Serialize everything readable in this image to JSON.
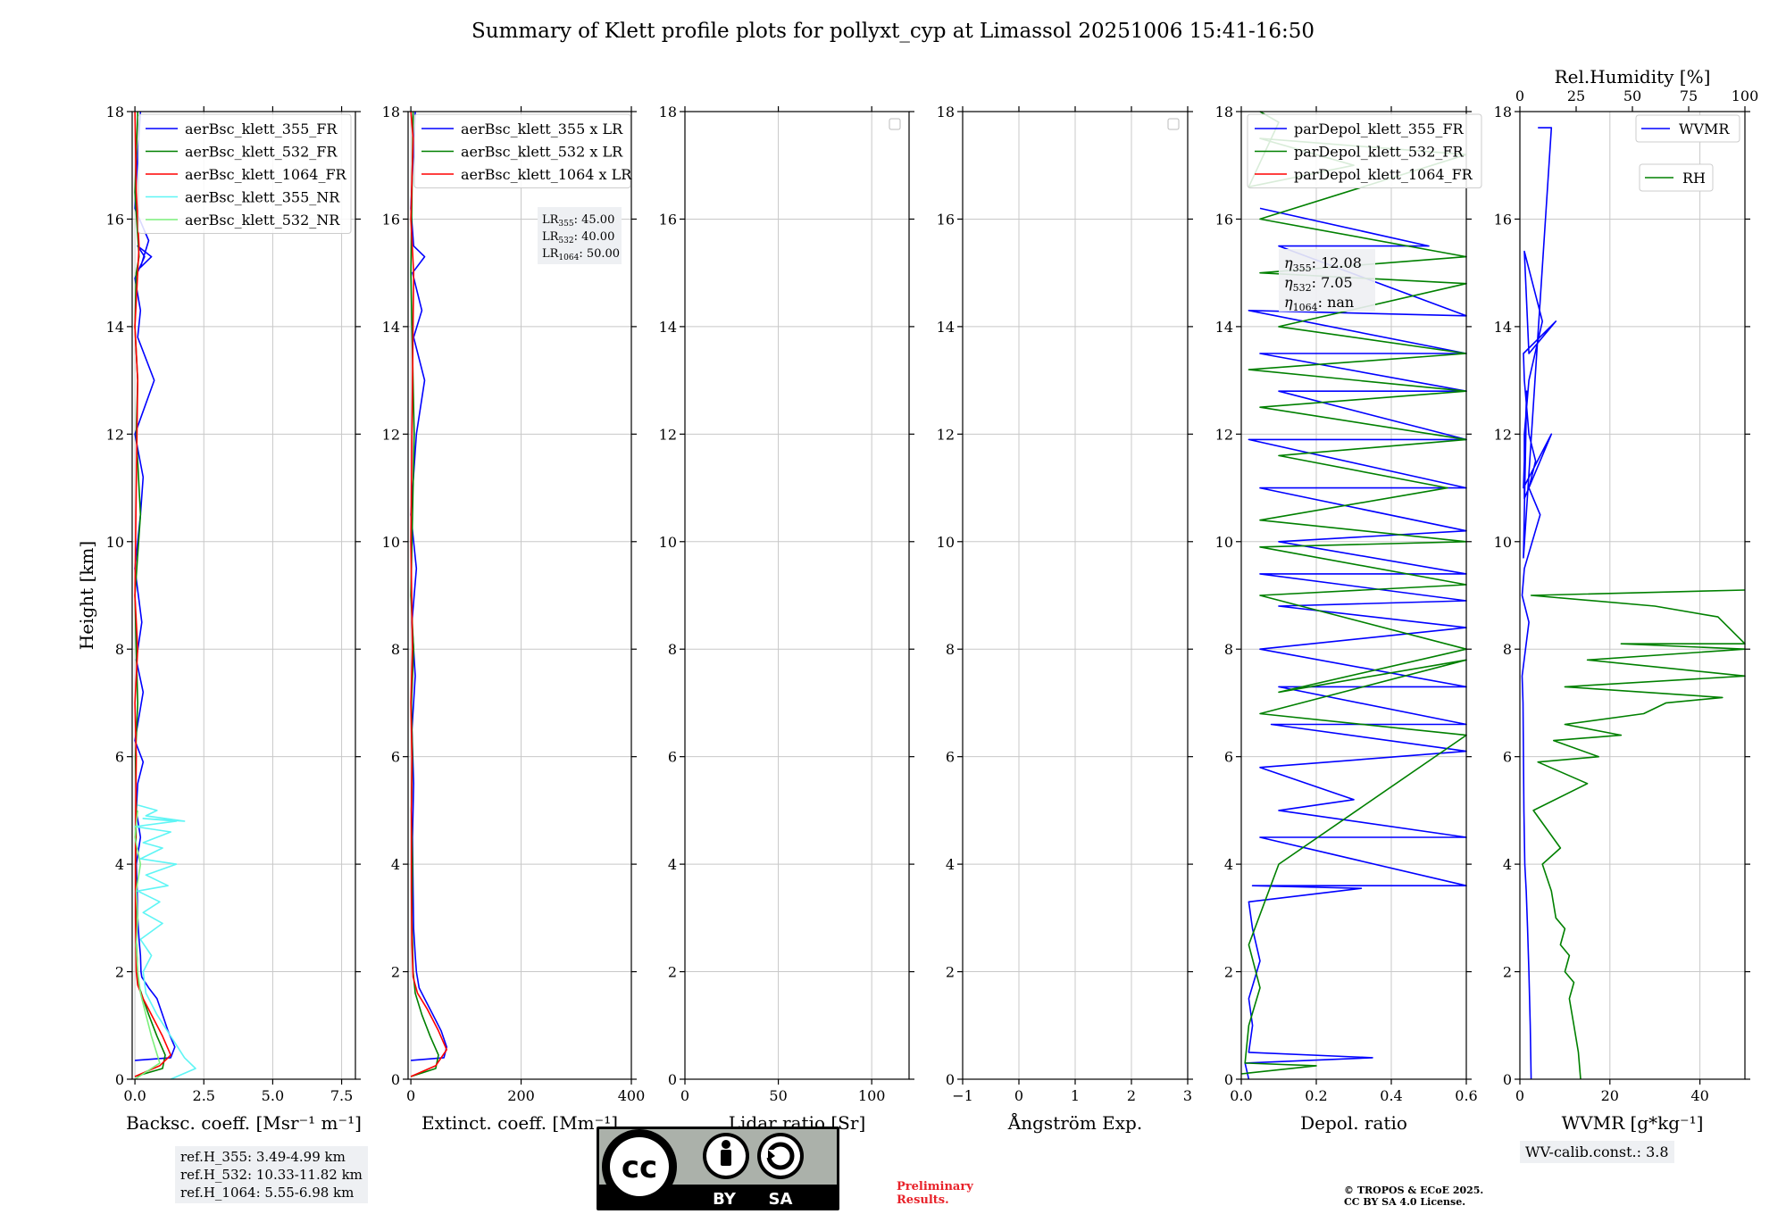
{
  "title": "Summary of Klett profile plots for pollyxt_cyp at Limassol 20251006 15:41-16:50",
  "ylabel": "Height [km]",
  "colors": {
    "b355": "#0000ff",
    "b532": "#008000",
    "b1064": "#ff0000",
    "nr355": "#5ff5f5",
    "nr532": "#7cf07c",
    "grid": "#c8c8c8",
    "frame": "#000000",
    "boxbg": "#eef0f3",
    "preliminary": "#e8222a"
  },
  "ref_heights": [
    "ref.H_355: 3.49-4.99 km",
    "ref.H_532: 10.33-11.82 km",
    "ref.H_1064: 5.55-6.98 km"
  ],
  "lr_text": [
    {
      "sub": "355",
      "val": ": 45.00"
    },
    {
      "sub": "532",
      "val": ": 40.00"
    },
    {
      "sub": "1064",
      "val": ": 50.00"
    }
  ],
  "eta_text": [
    {
      "sub": "355",
      "val": ": 12.08"
    },
    {
      "sub": "532",
      "val": ": 7.05"
    },
    {
      "sub": "1064",
      "val": ": nan"
    }
  ],
  "wv_calib": "WV-calib.const.: 3.8",
  "license": {
    "by": "BY",
    "sa": "SA",
    "cc": "cc"
  },
  "preliminary": [
    "Preliminary",
    "Results."
  ],
  "copyright": [
    "© TROPOS & ECoE 2025.",
    "CC BY SA 4.0 License."
  ],
  "chart_data": [
    {
      "type": "line",
      "id": "bsc",
      "xlabel": "Backsc. coeff. [Msr⁻¹ m⁻¹]",
      "xlim": [
        -0.1,
        8.0
      ],
      "ylim": [
        0,
        18
      ],
      "xticks": [
        0,
        2.5,
        5,
        7.5
      ],
      "xticklabels": [
        "0.0",
        "2.5",
        "5.0",
        "7.5"
      ],
      "yticks": [
        0,
        2,
        4,
        6,
        8,
        10,
        12,
        14,
        16,
        18
      ],
      "legend": "top-left",
      "series": [
        {
          "name": "aerBsc_klett_355_FR",
          "color": "b355",
          "x": [
            0.0,
            1.3,
            1.45,
            1.2,
            1.0,
            0.8,
            0.5,
            0.25,
            0.22,
            0.2,
            0.15,
            0.1,
            0.08,
            0.05,
            0.2,
            0.05,
            0.1,
            0.3,
            0.0,
            0.3,
            0.05,
            0.25,
            0.0,
            0.2,
            0.3,
            0.0,
            0.7,
            0.1,
            0.2,
            0.0,
            0.35,
            0.1,
            0.6,
            0.2,
            0.5,
            0.0,
            0.1,
            0.2
          ],
          "y": [
            0.35,
            0.4,
            0.6,
            0.9,
            1.2,
            1.5,
            1.7,
            1.9,
            2.0,
            2.3,
            2.6,
            3.0,
            3.5,
            4.0,
            4.5,
            5.0,
            5.5,
            5.9,
            6.3,
            7.2,
            7.8,
            8.5,
            9.5,
            10.5,
            11.2,
            12.0,
            13.0,
            13.8,
            14.3,
            14.9,
            15.3,
            15.5,
            15.3,
            15.1,
            15.6,
            16.2,
            17.2,
            18.0
          ]
        },
        {
          "name": "aerBsc_klett_532_FR",
          "color": "b532",
          "x": [
            0.0,
            1.0,
            1.1,
            0.8,
            0.5,
            0.3,
            0.1,
            0.08,
            0.05,
            0.04,
            0.03,
            0.05,
            0.02,
            0.1,
            0.05,
            0.0,
            0.2,
            0.05,
            0.1,
            0.0,
            0.05,
            0.15,
            0.0,
            0.1
          ],
          "y": [
            0.05,
            0.2,
            0.45,
            0.8,
            1.2,
            1.5,
            1.8,
            2.2,
            2.6,
            3.0,
            4.0,
            5.0,
            6.0,
            7.0,
            8.0,
            9.0,
            10.5,
            12.0,
            13.0,
            14.0,
            15.0,
            15.3,
            16.5,
            18.0
          ]
        },
        {
          "name": "aerBsc_klett_1064_FR",
          "color": "b1064",
          "x": [
            0.0,
            0.9,
            1.3,
            1.0,
            0.6,
            0.3,
            0.1,
            0.05,
            0.02,
            0.02,
            0.03,
            0.05,
            0.0,
            0.1,
            0.0,
            0.05,
            0.1,
            0.0,
            0.1,
            0.15,
            0.05,
            0.0
          ],
          "y": [
            0.05,
            0.25,
            0.45,
            0.8,
            1.2,
            1.5,
            1.75,
            2.0,
            3.0,
            4.0,
            5.0,
            6.0,
            7.0,
            8.0,
            9.0,
            11.0,
            13.0,
            14.0,
            15.0,
            15.5,
            16.5,
            18.0
          ]
        },
        {
          "name": "aerBsc_klett_355_NR",
          "color": "nr355",
          "x": [
            1.3,
            2.2,
            1.8,
            1.3,
            0.8,
            0.4,
            0.3,
            0.6,
            0.2,
            1.0,
            0.3,
            0.9,
            0.1,
            1.2,
            0.4,
            1.5,
            0.2,
            1.0,
            0.3,
            1.3,
            0.0,
            1.5,
            0.3,
            1.8,
            0.4,
            0.8,
            0.1
          ],
          "y": [
            0.0,
            0.2,
            0.4,
            0.8,
            1.2,
            1.6,
            2.0,
            2.3,
            2.6,
            2.9,
            3.1,
            3.3,
            3.5,
            3.6,
            3.8,
            4.0,
            4.1,
            4.3,
            4.4,
            4.6,
            4.7,
            4.8,
            4.85,
            4.8,
            4.9,
            5.0,
            5.1
          ]
        },
        {
          "name": "aerBsc_klett_532_NR",
          "color": "nr532",
          "x": [
            0.0,
            0.9,
            0.6,
            0.4,
            0.2,
            0.1,
            0.05,
            0.1,
            0.05,
            0.2,
            0.0,
            0.1
          ],
          "y": [
            0.0,
            0.3,
            0.8,
            1.2,
            1.6,
            2.0,
            2.5,
            3.0,
            3.5,
            4.0,
            4.5,
            5.0
          ]
        }
      ]
    },
    {
      "type": "line",
      "id": "ext",
      "xlabel": "Extinct. coeff. [Mm⁻¹]",
      "xlim": [
        -5,
        400
      ],
      "ylim": [
        0,
        18
      ],
      "xticks": [
        0,
        200,
        400
      ],
      "xticklabels": [
        "0",
        "200",
        "400"
      ],
      "yticks": [
        0,
        2,
        4,
        6,
        8,
        10,
        12,
        14,
        16,
        18
      ],
      "legend": "top-left",
      "series": [
        {
          "name": "aerBsc_klett_355 x LR",
          "color": "b355",
          "x": [
            0.0,
            60,
            65,
            55,
            40,
            25,
            15,
            10,
            8,
            5,
            4,
            3,
            5,
            2,
            8,
            2,
            10,
            0,
            10,
            25,
            5,
            20,
            3,
            25,
            5,
            0,
            8
          ],
          "y": [
            0.35,
            0.4,
            0.6,
            0.9,
            1.2,
            1.5,
            1.7,
            2.0,
            2.3,
            2.8,
            3.5,
            4.5,
            5.5,
            6.5,
            7.5,
            8.5,
            9.5,
            10.5,
            12.0,
            13.0,
            13.8,
            14.3,
            15.0,
            15.3,
            15.5,
            16.2,
            18.0
          ]
        },
        {
          "name": "aerBsc_klett_532 x LR",
          "color": "b532",
          "x": [
            0.0,
            45,
            50,
            35,
            20,
            8,
            4,
            2,
            3,
            1,
            3,
            1,
            5,
            0,
            6,
            2,
            0,
            4
          ],
          "y": [
            0.05,
            0.2,
            0.45,
            0.8,
            1.2,
            1.6,
            2.0,
            3.0,
            4.0,
            5.0,
            6.0,
            7.0,
            8.0,
            9.0,
            12.0,
            14.0,
            15.0,
            18.0
          ]
        },
        {
          "name": "aerBsc_klett_1064 x LR",
          "color": "b1064",
          "x": [
            0.0,
            45,
            65,
            50,
            30,
            12,
            4,
            2,
            1,
            1,
            2,
            0,
            3,
            0,
            2,
            5,
            0,
            4,
            0
          ],
          "y": [
            0.05,
            0.25,
            0.55,
            0.9,
            1.3,
            1.6,
            1.9,
            2.5,
            3.5,
            5.0,
            6.0,
            7.0,
            8.0,
            10.0,
            12.0,
            15.0,
            16.0,
            17.5,
            18.0
          ]
        }
      ]
    },
    {
      "type": "line",
      "id": "lr",
      "xlabel": "Lidar ratio [Sr]",
      "xlim": [
        0,
        120
      ],
      "ylim": [
        0,
        18
      ],
      "xticks": [
        0,
        50,
        100
      ],
      "xticklabels": [
        "0",
        "50",
        "100"
      ],
      "yticks": [
        0,
        2,
        4,
        6,
        8,
        10,
        12,
        14,
        16,
        18
      ],
      "legend": "empty-top-right",
      "series": []
    },
    {
      "type": "line",
      "id": "ang",
      "xlabel": "Ångström Exp.",
      "xlim": [
        -1,
        3
      ],
      "ylim": [
        0,
        18
      ],
      "xticks": [
        -1,
        0,
        1,
        2,
        3
      ],
      "xticklabels": [
        "−1",
        "0",
        "1",
        "2",
        "3"
      ],
      "yticks": [
        0,
        2,
        4,
        6,
        8,
        10,
        12,
        14,
        16,
        18
      ],
      "legend": "empty-top-right",
      "series": []
    },
    {
      "type": "line",
      "id": "dep",
      "xlabel": "Depol. ratio",
      "xlim": [
        0,
        0.6
      ],
      "ylim": [
        0,
        18
      ],
      "xticks": [
        0,
        0.2,
        0.4,
        0.6
      ],
      "xticklabels": [
        "0.0",
        "0.2",
        "0.4",
        "0.6"
      ],
      "yticks": [
        0,
        2,
        4,
        6,
        8,
        10,
        12,
        14,
        16,
        18
      ],
      "legend": "top-left",
      "series": [
        {
          "name": "parDepol_klett_355_FR",
          "color": "b355",
          "x": [
            0.02,
            0.01,
            0.35,
            0.02,
            0.03,
            0.02,
            0.05,
            0.03,
            0.02,
            0.32,
            0.03,
            0.6,
            0.05,
            0.6,
            0.1,
            0.3,
            0.05,
            0.6,
            0.08,
            0.6,
            0.1,
            0.6,
            0.05,
            0.6,
            0.1,
            0.6,
            0.05,
            0.6,
            0.1,
            0.6,
            0.05,
            0.6,
            0.02,
            0.6,
            0.1,
            0.6,
            0.05,
            0.6,
            0.02,
            0.6,
            0.1,
            0.5,
            0.05
          ],
          "y": [
            0.0,
            0.3,
            0.4,
            0.5,
            1.0,
            1.5,
            2.2,
            2.8,
            3.3,
            3.55,
            3.6,
            3.6,
            4.5,
            4.5,
            5.0,
            5.2,
            5.8,
            6.1,
            6.6,
            6.6,
            7.3,
            7.3,
            8.0,
            8.4,
            8.8,
            8.9,
            9.4,
            9.4,
            10.0,
            10.2,
            11.0,
            11.0,
            11.9,
            11.9,
            12.8,
            12.8,
            13.5,
            13.5,
            14.3,
            14.2,
            15.5,
            15.5,
            16.2
          ]
        },
        {
          "name": "parDepol_klett_532_FR",
          "color": "b532",
          "x": [
            0.0,
            0.2,
            0.01,
            0.02,
            0.05,
            0.02,
            0.1,
            0.6,
            0.05,
            0.6,
            0.1,
            0.6,
            0.05,
            0.6,
            0.05,
            0.6,
            0.05,
            0.55,
            0.1,
            0.6,
            0.05,
            0.6,
            0.02,
            0.6,
            0.1,
            0.6,
            0.05,
            0.6,
            0.05,
            0.6,
            0.05,
            0.3,
            0.02,
            0.1,
            0.05
          ],
          "y": [
            0.1,
            0.25,
            0.3,
            1.0,
            1.7,
            2.5,
            4.0,
            6.4,
            6.8,
            7.8,
            7.2,
            8.0,
            9.0,
            9.2,
            9.9,
            10.0,
            10.4,
            11.0,
            11.6,
            11.9,
            12.5,
            12.8,
            13.2,
            13.5,
            14.0,
            14.8,
            15.0,
            15.3,
            16.0,
            17.2,
            17.5,
            17.0,
            16.6,
            17.8,
            18.0
          ]
        },
        {
          "name": "parDepol_klett_1064_FR",
          "color": "b1064",
          "x": [],
          "y": []
        }
      ]
    },
    {
      "type": "line",
      "id": "wv",
      "xlabel": "WVMR [g*kg⁻¹]",
      "xlim": [
        0,
        50
      ],
      "ylim": [
        0,
        18
      ],
      "xticks": [
        0,
        20,
        40
      ],
      "xticklabels": [
        "0",
        "20",
        "40"
      ],
      "yticks": [
        0,
        2,
        4,
        6,
        8,
        10,
        12,
        14,
        16,
        18
      ],
      "top_xlabel": "Rel.Humidity [%]",
      "top_xlim": [
        0,
        100
      ],
      "top_xticks": [
        0,
        25,
        50,
        75,
        100
      ],
      "top_xticklabels": [
        "0",
        "25",
        "50",
        "75",
        "100"
      ],
      "legend": "top-right",
      "series": [
        {
          "name": "WVMR",
          "color": "b355",
          "axis": "bottom",
          "x": [
            2.5,
            2.3,
            2.0,
            1.7,
            1.4,
            1.1,
            0.9,
            0.8,
            0.7,
            0.5,
            2.0,
            0.5,
            1.0,
            4.5,
            2.0,
            3.5,
            2.0,
            1.5,
            1.0,
            0.8,
            8.0,
            2.0,
            1.0,
            5.0,
            2.0,
            1.0,
            1.0,
            7.0,
            0.8,
            1.5,
            0.8,
            7.0,
            4.0
          ],
          "y": [
            0.0,
            1.0,
            2.0,
            2.8,
            3.5,
            4.0,
            5.0,
            6.0,
            7.0,
            7.5,
            8.5,
            9.0,
            9.5,
            10.5,
            11.0,
            11.5,
            12.0,
            12.5,
            13.0,
            13.5,
            14.1,
            13.5,
            15.4,
            14.1,
            13.0,
            12.0,
            10.8,
            12.0,
            11.0,
            12.8,
            9.7,
            17.7,
            17.7
          ]
        },
        {
          "name": "RH",
          "color": "b532",
          "axis": "top",
          "x": [
            27,
            26,
            24,
            22,
            24,
            20,
            22,
            18,
            20,
            16,
            14,
            10,
            18,
            6,
            30,
            8,
            35,
            15,
            45,
            20,
            55,
            65,
            90,
            20,
            100,
            30,
            100,
            45,
            100,
            88,
            60,
            5,
            100
          ],
          "y": [
            0.0,
            0.5,
            1.0,
            1.5,
            1.8,
            2.0,
            2.3,
            2.5,
            2.8,
            3.0,
            3.5,
            4.0,
            4.3,
            5.0,
            5.5,
            5.9,
            6.0,
            6.3,
            6.4,
            6.6,
            6.8,
            7.0,
            7.1,
            7.3,
            7.5,
            7.8,
            8.0,
            8.1,
            8.1,
            8.6,
            8.8,
            9.0,
            9.1
          ]
        }
      ]
    }
  ]
}
